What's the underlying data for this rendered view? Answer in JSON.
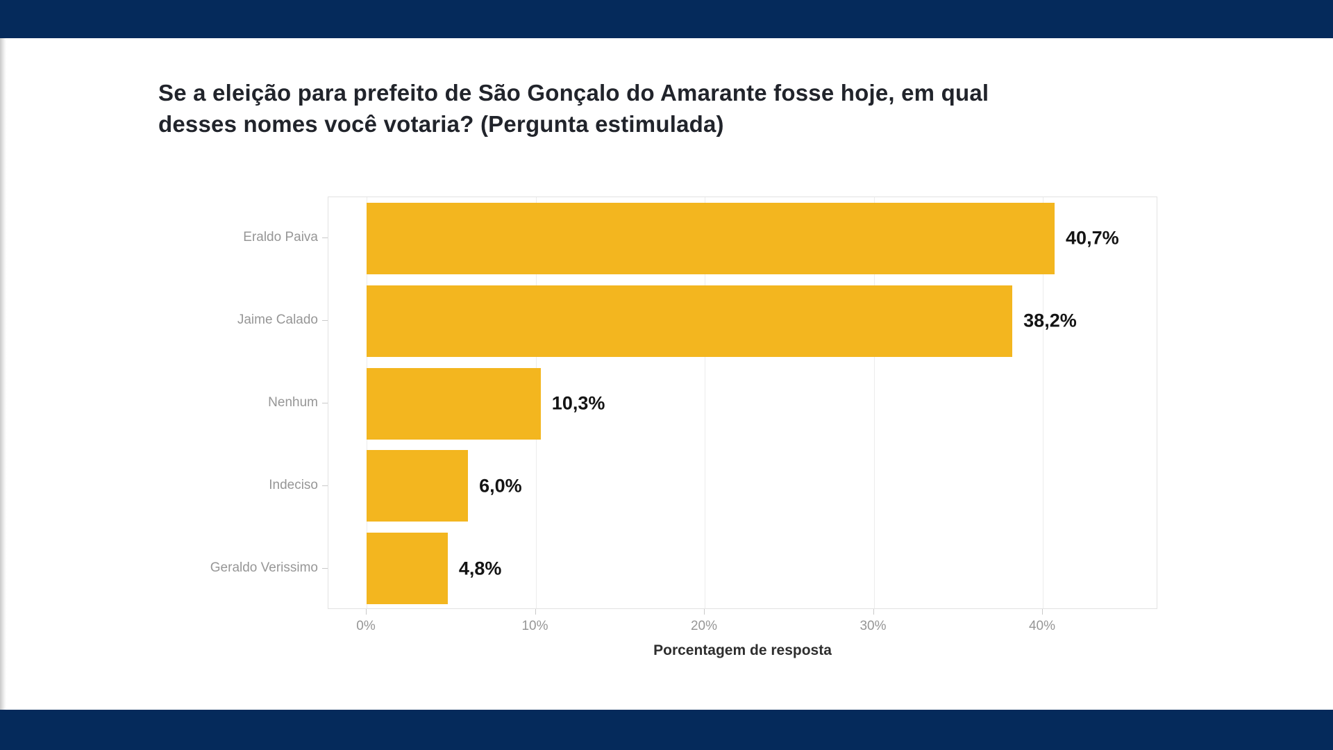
{
  "slide": {
    "title_lines": [
      "Se a eleição para prefeito de São Gonçalo do Amarante fosse hoje, em qual",
      "desses nomes você votaria? (Pergunta estimulada)"
    ]
  },
  "chart_data": {
    "type": "bar",
    "orientation": "horizontal",
    "title": "Se a eleição para prefeito de São Gonçalo do Amarante fosse hoje, em qual desses nomes você votaria? (Pergunta estimulada)",
    "categories": [
      "Eraldo Paiva",
      "Jaime Calado",
      "Nenhum",
      "Indeciso",
      "Geraldo Verissimo"
    ],
    "values": [
      40.7,
      38.2,
      10.3,
      6.0,
      4.8
    ],
    "value_labels": [
      "40,7%",
      "38,2%",
      "10,3%",
      "6,0%",
      "4,8%"
    ],
    "xlabel": "Porcentagem de resposta",
    "x_ticks": [
      0,
      10,
      20,
      30,
      40
    ],
    "x_tick_labels": [
      "0%",
      "10%",
      "20%",
      "30%",
      "40%"
    ],
    "xlim": [
      0,
      47
    ],
    "grid": "vertical-major-gridlines-only",
    "legend": "none"
  },
  "colors": {
    "bar": "#F3B61F",
    "band": "#052A5B",
    "title_text": "#21242B",
    "axis_text": "#969696",
    "value_text": "#141414",
    "panel_border": "#E2E2E2",
    "gridline": "#ECECEC"
  }
}
